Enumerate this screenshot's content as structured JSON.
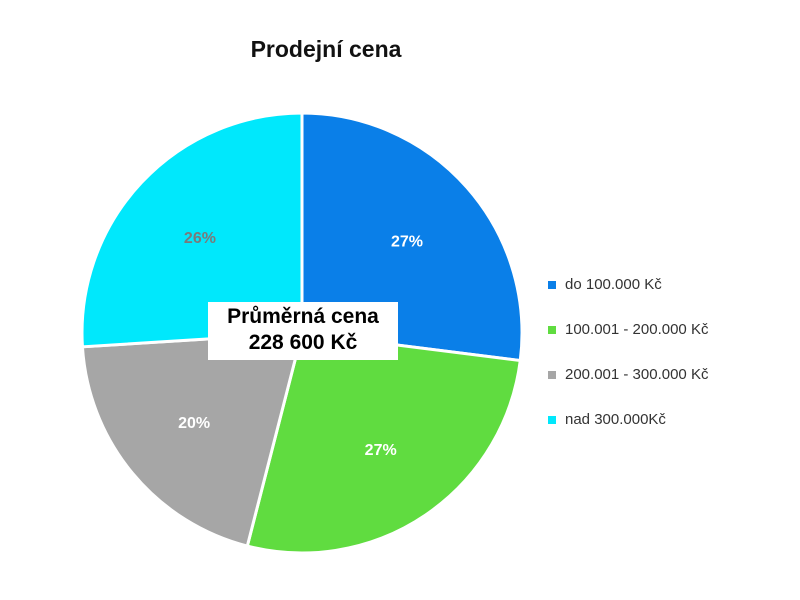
{
  "chart_data": {
    "type": "pie",
    "title": "Prodejní cena",
    "categories": [
      "do 100.000 Kč",
      "100.001 - 200.000 Kč",
      "200.001 - 300.000 Kč",
      "nad 300.000Kč"
    ],
    "values": [
      27,
      27,
      20,
      26
    ],
    "labels": [
      "27%",
      "27%",
      "20%",
      "26%"
    ],
    "colors": [
      "#0a7fe8",
      "#60dc40",
      "#a6a6a6",
      "#00e8fc"
    ],
    "label_colors": [
      "#ffffff",
      "#ffffff",
      "#ffffff",
      "#7a7a7a"
    ],
    "legend_position": "right",
    "annotation": {
      "line1": "Průměrná  cena",
      "line2": "228 600  Kč"
    }
  }
}
